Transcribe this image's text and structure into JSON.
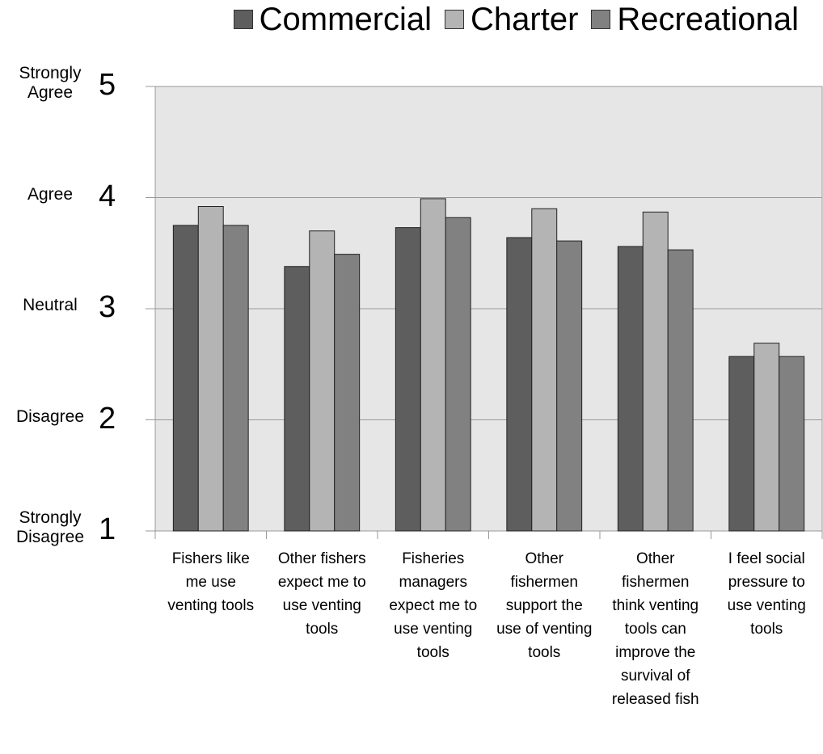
{
  "chart_data": {
    "type": "bar",
    "categories": [
      "Fishers like me use venting tools",
      "Other fishers expect me to use venting tools",
      "Fisheries managers expect me to use venting tools",
      "Other fishermen support the use of venting tools",
      "Other fishermen think venting tools can improve the survival of released fish",
      "I feel social pressure to use venting tools"
    ],
    "series": [
      {
        "name": "Commercial",
        "color": "#5e5e5e",
        "values": [
          3.75,
          3.38,
          3.73,
          3.64,
          3.56,
          2.57
        ]
      },
      {
        "name": "Charter",
        "color": "#b4b4b4",
        "values": [
          3.92,
          3.7,
          3.99,
          3.9,
          3.87,
          2.69
        ]
      },
      {
        "name": "Recreational",
        "color": "#818181",
        "values": [
          3.75,
          3.49,
          3.82,
          3.61,
          3.53,
          2.57
        ]
      }
    ],
    "ylim": [
      1,
      5
    ],
    "yticks": [
      1,
      2,
      3,
      4,
      5
    ],
    "ytick_names": [
      "Strongly Disagree",
      "Disagree",
      "Neutral",
      "Agree",
      "Strongly Agree"
    ],
    "grid": true,
    "legend": "top"
  }
}
